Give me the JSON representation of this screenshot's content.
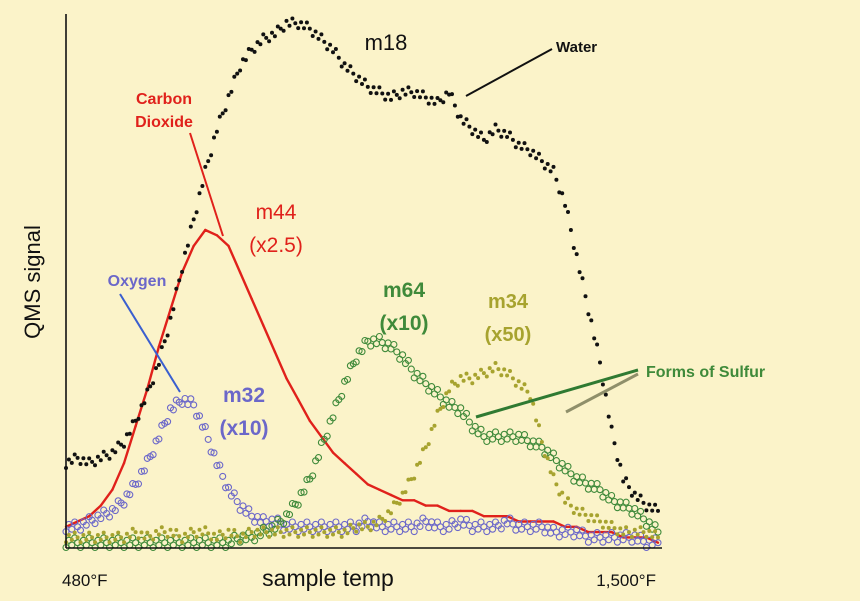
{
  "chart_data": {
    "type": "line",
    "ylabel": "QMS signal",
    "xlabel": "sample temp",
    "x_tick_labels": [
      "480°F",
      "1,500°F"
    ],
    "xlim": [
      480,
      1500
    ],
    "ylim": [
      0,
      100
    ],
    "axis_ticks": false,
    "grid": false,
    "legend": "none",
    "background": "#fbf3c9",
    "series": [
      {
        "name": "m18",
        "marker": "dot",
        "color": "#111111",
        "x": [
          480,
          500,
          520,
          540,
          560,
          580,
          600,
          620,
          640,
          660,
          680,
          700,
          720,
          740,
          760,
          780,
          800,
          820,
          840,
          860,
          880,
          900,
          920,
          940,
          960,
          980,
          1000,
          1020,
          1040,
          1060,
          1080,
          1100,
          1120,
          1140,
          1160,
          1180,
          1200,
          1220,
          1240,
          1260,
          1280,
          1300,
          1320,
          1340,
          1360,
          1380,
          1400,
          1420,
          1440,
          1460,
          1480,
          1500
        ],
        "values": [
          16,
          17,
          16,
          17,
          18,
          20,
          24,
          29,
          35,
          43,
          53,
          62,
          71,
          79,
          85,
          91,
          94,
          96,
          97,
          99,
          99,
          98,
          96,
          94,
          91,
          89,
          87,
          86,
          85,
          86,
          86,
          85,
          84,
          86,
          81,
          79,
          77,
          79,
          78,
          76,
          75,
          73,
          71,
          65,
          55,
          45,
          35,
          22,
          13,
          10,
          8,
          7
        ]
      },
      {
        "name": "m44 (x2.5)",
        "marker": "line",
        "color": "#e0211b",
        "x": [
          480,
          500,
          520,
          540,
          560,
          580,
          600,
          620,
          640,
          660,
          680,
          700,
          720,
          740,
          760,
          780,
          800,
          820,
          840,
          860,
          880,
          900,
          920,
          940,
          960,
          980,
          1000,
          1020,
          1040,
          1060,
          1080,
          1100,
          1120,
          1140,
          1160,
          1180,
          1200,
          1220,
          1240,
          1260,
          1280,
          1300,
          1320,
          1340,
          1360,
          1380,
          1400,
          1420,
          1440,
          1460,
          1480,
          1500
        ],
        "values": [
          4,
          5,
          6,
          8,
          11,
          16,
          23,
          30,
          38,
          45,
          52,
          57,
          60,
          59,
          57,
          52,
          47,
          42,
          37,
          32,
          28,
          24,
          21,
          18,
          16,
          14,
          12,
          11,
          10,
          9,
          9,
          8,
          8,
          7,
          7,
          7,
          6,
          6,
          6,
          5,
          5,
          5,
          5,
          4,
          4,
          3,
          3,
          3,
          2,
          2,
          2,
          1
        ]
      },
      {
        "name": "m32 (x10)",
        "marker": "circle",
        "color": "#6b67c9",
        "x": [
          480,
          500,
          520,
          540,
          560,
          580,
          600,
          620,
          640,
          660,
          680,
          700,
          720,
          740,
          760,
          780,
          800,
          820,
          840,
          860,
          880,
          900,
          920,
          940,
          960,
          980,
          1000,
          1020,
          1040,
          1060,
          1080,
          1100,
          1120,
          1140,
          1160,
          1180,
          1200,
          1220,
          1240,
          1260,
          1280,
          1300,
          1320,
          1340,
          1360,
          1380,
          1400,
          1420,
          1440,
          1460,
          1480,
          1500
        ],
        "values": [
          4,
          4,
          5,
          6,
          7,
          9,
          12,
          16,
          21,
          26,
          28,
          27,
          22,
          16,
          11,
          8,
          6,
          5,
          5,
          4,
          4,
          4,
          4,
          4,
          4,
          4,
          5,
          4,
          4,
          4,
          4,
          5,
          4,
          4,
          5,
          4,
          4,
          4,
          5,
          4,
          4,
          4,
          3,
          3,
          3,
          2,
          2,
          2,
          2,
          2,
          1,
          1
        ]
      },
      {
        "name": "m64 (x10)",
        "marker": "circle",
        "color": "#3f8a3a",
        "x": [
          480,
          500,
          520,
          540,
          560,
          580,
          600,
          620,
          640,
          660,
          680,
          700,
          720,
          740,
          760,
          780,
          800,
          820,
          840,
          860,
          880,
          900,
          920,
          940,
          960,
          980,
          1000,
          1020,
          1040,
          1060,
          1080,
          1100,
          1120,
          1140,
          1160,
          1180,
          1200,
          1220,
          1240,
          1260,
          1280,
          1300,
          1320,
          1340,
          1360,
          1380,
          1400,
          1420,
          1440,
          1460,
          1480,
          1500
        ],
        "values": [
          1,
          1,
          1,
          1,
          1,
          1,
          1,
          1,
          1,
          1,
          1,
          1,
          1,
          1,
          1,
          2,
          2,
          3,
          4,
          6,
          9,
          13,
          19,
          25,
          31,
          36,
          39,
          39,
          38,
          36,
          33,
          31,
          29,
          27,
          26,
          23,
          21,
          21,
          21,
          21,
          20,
          19,
          17,
          15,
          13,
          12,
          11,
          9,
          8,
          7,
          5,
          3
        ]
      },
      {
        "name": "m34 (x50)",
        "marker": "dot",
        "color": "#a7a32f",
        "x": [
          480,
          500,
          520,
          540,
          560,
          580,
          600,
          620,
          640,
          660,
          680,
          700,
          720,
          740,
          760,
          780,
          800,
          820,
          840,
          860,
          880,
          900,
          920,
          940,
          960,
          980,
          1000,
          1020,
          1040,
          1060,
          1080,
          1100,
          1120,
          1140,
          1160,
          1180,
          1200,
          1220,
          1240,
          1260,
          1280,
          1300,
          1320,
          1340,
          1360,
          1380,
          1400,
          1420,
          1440,
          1460,
          1480,
          1500
        ],
        "values": [
          2,
          2,
          2,
          2,
          2,
          2,
          3,
          2,
          3,
          3,
          2,
          3,
          3,
          2,
          3,
          2,
          3,
          3,
          3,
          3,
          3,
          3,
          3,
          3,
          3,
          4,
          4,
          5,
          7,
          10,
          14,
          19,
          25,
          30,
          32,
          32,
          33,
          34,
          33,
          31,
          29,
          20,
          13,
          9,
          7,
          6,
          5,
          4,
          3,
          3,
          3,
          2
        ]
      }
    ],
    "annotations": [
      {
        "text": "m18",
        "color": "#111111"
      },
      {
        "text": "Water",
        "color": "#111111"
      },
      {
        "text_lines": [
          "Carbon",
          "Dioxide"
        ],
        "color": "#e0211b"
      },
      {
        "text_lines": [
          "m44",
          "(x2.5)"
        ],
        "color": "#e0211b"
      },
      {
        "text": "Oxygen",
        "color": "#6b67c9"
      },
      {
        "text_lines": [
          "m32",
          "(x10)"
        ],
        "color": "#6b67c9"
      },
      {
        "text_lines": [
          "m64",
          "(x10)"
        ],
        "color": "#3f8a3a"
      },
      {
        "text_lines": [
          "m34",
          "(x50)"
        ],
        "color": "#a7a32f"
      },
      {
        "text": "Forms of Sulfur",
        "color": "#3f8a3a"
      }
    ]
  }
}
